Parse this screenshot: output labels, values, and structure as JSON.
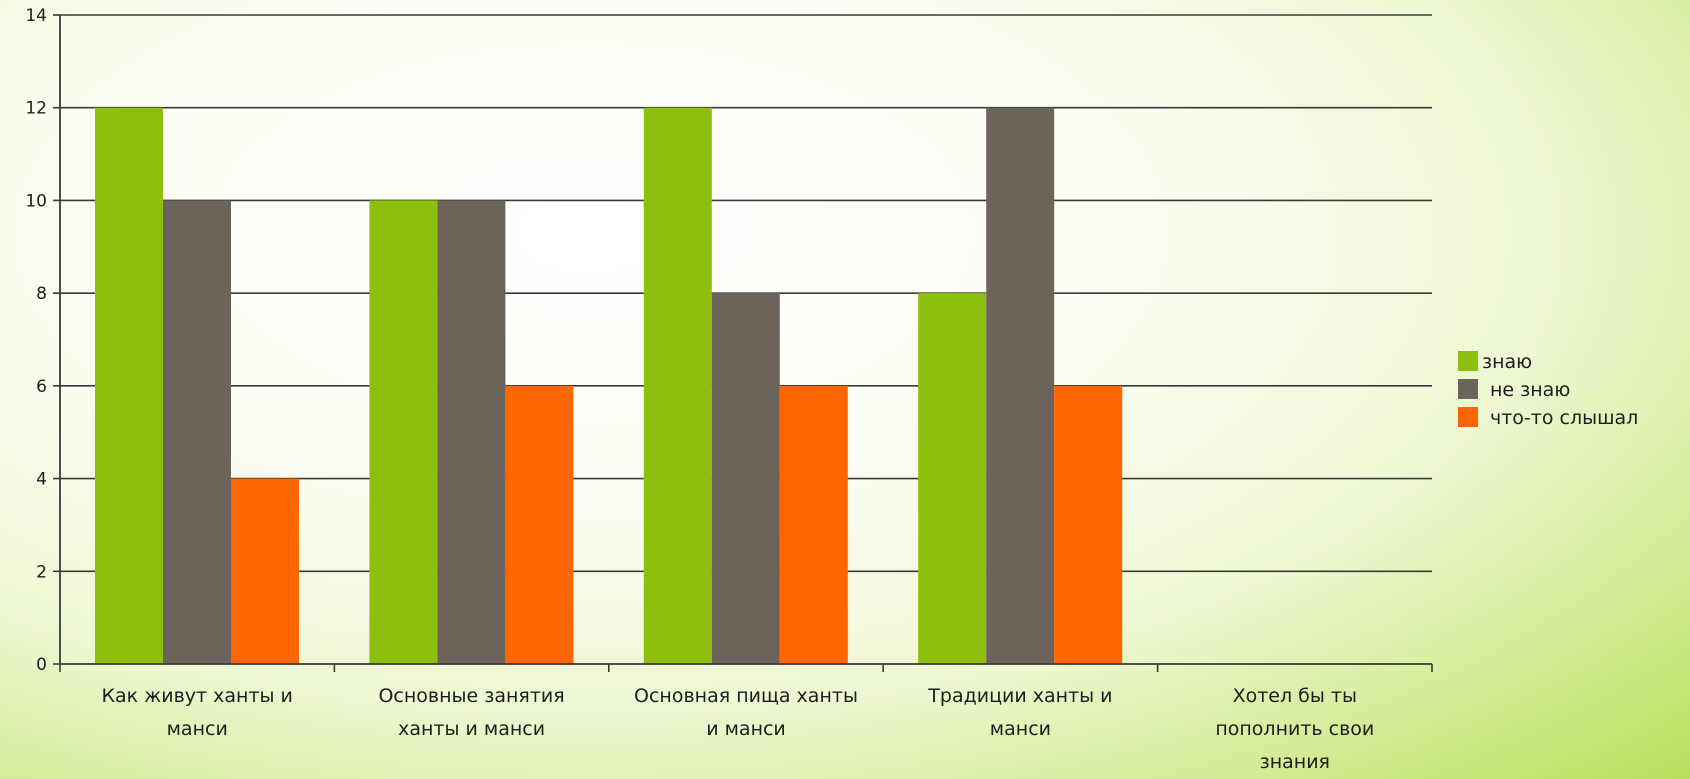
{
  "chart_data": {
    "type": "bar",
    "categories": [
      [
        "Как живут ханты и",
        "манси"
      ],
      [
        "Основные занятия",
        "ханты и манси"
      ],
      [
        "Основная пища ханты",
        "и манси"
      ],
      [
        "Традиции ханты и",
        "манси"
      ],
      [
        "Хотел бы ты",
        "пополнить свои",
        "знания"
      ]
    ],
    "series": [
      {
        "name": "знаю",
        "color": "#8dc00c",
        "values": [
          12,
          10,
          12,
          8,
          null
        ]
      },
      {
        "name": "не знаю",
        "color": "#6c645a",
        "values": [
          10,
          10,
          8,
          12,
          null
        ]
      },
      {
        "name": "что-то слышал",
        "color": "#ff6600",
        "values": [
          4,
          6,
          6,
          6,
          null
        ]
      }
    ],
    "y_ticks": [
      "0",
      "2",
      "4",
      "6",
      "8",
      "10",
      "12",
      "14"
    ],
    "ylim": [
      0,
      14
    ],
    "grid": true,
    "legend_position": "right"
  }
}
